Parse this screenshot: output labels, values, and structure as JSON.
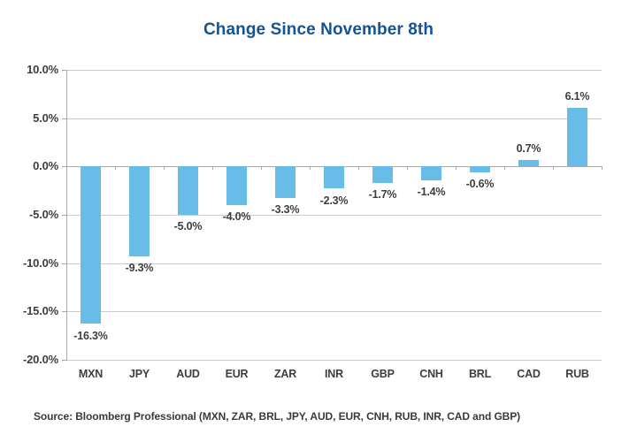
{
  "chart": {
    "title": "Change Since November 8th",
    "source": "Source: Bloomberg Professional (MXN, ZAR, BRL, JPY, AUD, EUR, CNH, RUB, INR, CAD and GBP)"
  },
  "chart_data": {
    "type": "bar",
    "title": "Change Since November 8th",
    "categories": [
      "MXN",
      "JPY",
      "AUD",
      "EUR",
      "ZAR",
      "INR",
      "GBP",
      "CNH",
      "BRL",
      "CAD",
      "RUB"
    ],
    "values": [
      -16.3,
      -9.3,
      -5.0,
      -4.0,
      -3.3,
      -2.3,
      -1.7,
      -1.4,
      -0.6,
      0.7,
      6.1
    ],
    "bar_labels": [
      "-16.3%",
      "-9.3%",
      "-5.0%",
      "-4.0%",
      "-3.3%",
      "-2.3%",
      "-1.7%",
      "-1.4%",
      "-0.6%",
      "0.7%",
      "6.1%"
    ],
    "xlabel": "",
    "ylabel": "",
    "ylim": [
      -20,
      10
    ],
    "y_ticks": [
      10,
      5,
      0,
      -5,
      -10,
      -15,
      -20
    ],
    "y_tick_labels": [
      "10.0%",
      "5.0%",
      "0.0%",
      "-5.0%",
      "-10.0%",
      "-15.0%",
      "-20.0%"
    ],
    "grid": true,
    "legend": false,
    "source": "Source: Bloomberg Professional (MXN, ZAR, BRL, JPY, AUD, EUR, CNH, RUB, INR, CAD and GBP)",
    "colors": {
      "bar": "#68BDE8",
      "title": "#145496",
      "label": "#3E3E3E",
      "source_text": "#3A3A3A",
      "gridline": "#CACBCC",
      "axis": "#A7A8AA"
    }
  }
}
